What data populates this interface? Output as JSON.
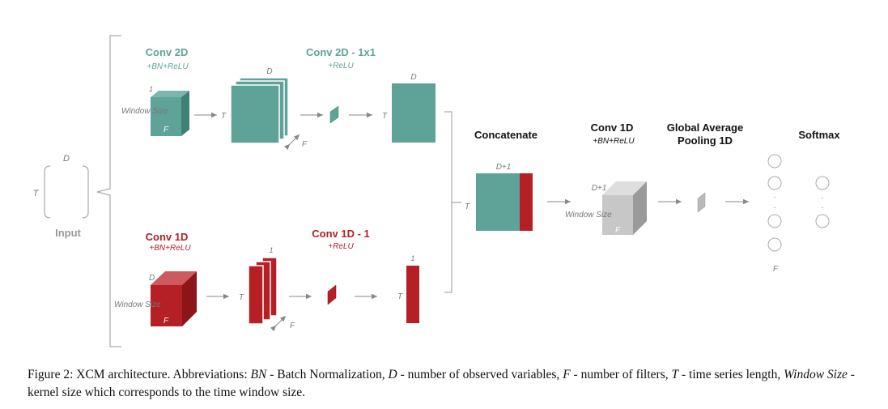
{
  "colors": {
    "teal": "#5fa398",
    "red": "#b51f26",
    "gray": "#c7c7c7",
    "arrow": "#888888",
    "bracket": "#aaaaaa"
  },
  "input": {
    "label": "Input",
    "dim_d": "D",
    "dim_t": "T"
  },
  "conv2d_branch": {
    "conv2d_title": "Conv 2D",
    "conv2d_sub": "+BN+ReLU",
    "conv2d_1x1_title": "Conv 2D - 1x1",
    "conv2d_1x1_sub": "+ReLU",
    "kernel_depth": "1",
    "kernel_size": "Window Size",
    "kernel_filters": "F",
    "fmap_t": "T",
    "fmap_d": "D",
    "fmap_f": "F",
    "out_t": "T",
    "out_d": "D"
  },
  "conv1d_branch": {
    "conv1d_title": "Conv 1D",
    "conv1d_sub": "+BN+ReLU",
    "conv1d_1_title": "Conv 1D - 1",
    "conv1d_1_sub": "+ReLU",
    "kernel_depth": "D",
    "kernel_size": "Window Size",
    "kernel_filters": "F",
    "fmap_t": "T",
    "fmap_one": "1",
    "fmap_f": "F",
    "out_t": "T",
    "out_one": "1"
  },
  "merge": {
    "concat_title": "Concatenate",
    "concat_dim": "D+1",
    "concat_t": "T",
    "conv1d_title": "Conv 1D",
    "conv1d_sub": "+BN+ReLU",
    "conv1d_depth": "D+1",
    "conv1d_size": "Window Size",
    "conv1d_filters": "F",
    "gap_title_1": "Global Average",
    "gap_title_2": "Pooling 1D",
    "softmax_title": "Softmax",
    "f_label": "F",
    "dots": "."
  },
  "caption": {
    "p1": "Figure 2: XCM architecture. Abbreviations: ",
    "bn": "BN",
    "p2": " - Batch Normalization, ",
    "d": "D",
    "p3": " - number of observed variables, ",
    "f": "F",
    "p4": " - number of filters, ",
    "t": "T",
    "p5": " - time series length, ",
    "ws": "Window Size",
    "p6": " - kernel size which corresponds to the time window size."
  }
}
